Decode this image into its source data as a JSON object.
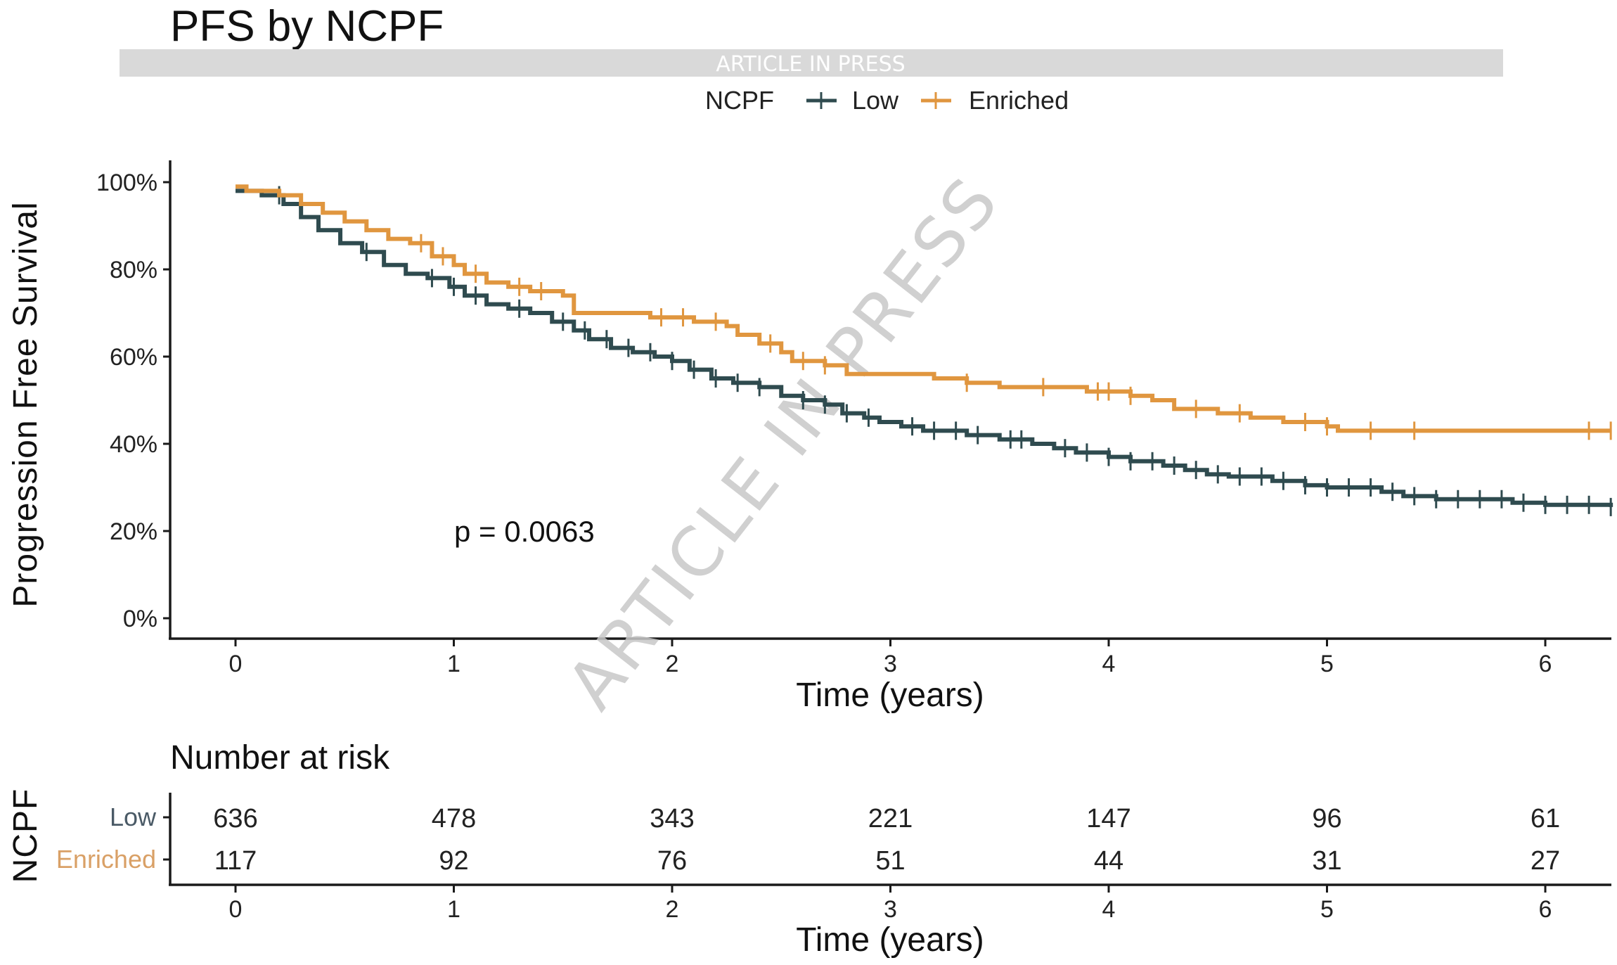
{
  "chart_data": {
    "type": "line",
    "subtype": "kaplan-meier",
    "title": "PFS by NCPF",
    "banner": "ARTICLE IN PRESS",
    "watermark": "ARTICLE IN PRESS",
    "xlabel": "Time (years)",
    "ylabel": "Progression Free Survival",
    "xlim": [
      -0.3,
      6.3
    ],
    "ylim": [
      -5,
      105
    ],
    "x_ticks": [
      0,
      1,
      2,
      3,
      4,
      5,
      6
    ],
    "x_tick_labels": [
      "0",
      "1",
      "2",
      "3",
      "4",
      "5",
      "6"
    ],
    "y_ticks": [
      0,
      20,
      40,
      60,
      80,
      100
    ],
    "y_tick_labels": [
      "0%",
      "20%",
      "40%",
      "60%",
      "80%",
      "100%"
    ],
    "grid": false,
    "legend": {
      "title": "NCPF",
      "placement": "top",
      "entries": [
        {
          "label": "Low",
          "color": "#2f4b4f"
        },
        {
          "label": "Enriched",
          "color": "#e0963f"
        }
      ]
    },
    "annotation": "p = 0.0063",
    "series": [
      {
        "name": "Low",
        "color": "#2f4b4f",
        "steps": [
          [
            0,
            98
          ],
          [
            0.12,
            97
          ],
          [
            0.22,
            95
          ],
          [
            0.3,
            92
          ],
          [
            0.38,
            89
          ],
          [
            0.48,
            86
          ],
          [
            0.58,
            84
          ],
          [
            0.68,
            81
          ],
          [
            0.78,
            79
          ],
          [
            0.88,
            78
          ],
          [
            0.98,
            76
          ],
          [
            1.05,
            74
          ],
          [
            1.15,
            72
          ],
          [
            1.25,
            71
          ],
          [
            1.35,
            70
          ],
          [
            1.45,
            68
          ],
          [
            1.55,
            66
          ],
          [
            1.62,
            64
          ],
          [
            1.72,
            62
          ],
          [
            1.82,
            61
          ],
          [
            1.92,
            60
          ],
          [
            2.0,
            59
          ],
          [
            2.08,
            57
          ],
          [
            2.18,
            55
          ],
          [
            2.28,
            54
          ],
          [
            2.4,
            53
          ],
          [
            2.5,
            51
          ],
          [
            2.6,
            50
          ],
          [
            2.7,
            49
          ],
          [
            2.78,
            47
          ],
          [
            2.88,
            46
          ],
          [
            2.95,
            45
          ],
          [
            3.05,
            44
          ],
          [
            3.15,
            43
          ],
          [
            3.35,
            42
          ],
          [
            3.5,
            41
          ],
          [
            3.65,
            40
          ],
          [
            3.75,
            39
          ],
          [
            3.85,
            38
          ],
          [
            4.0,
            37
          ],
          [
            4.1,
            36
          ],
          [
            4.25,
            35
          ],
          [
            4.35,
            34
          ],
          [
            4.45,
            33
          ],
          [
            4.55,
            32.5
          ],
          [
            4.75,
            31.5
          ],
          [
            4.9,
            30.5
          ],
          [
            5.0,
            30
          ],
          [
            5.25,
            29
          ],
          [
            5.35,
            28
          ],
          [
            5.5,
            27.3
          ],
          [
            5.85,
            26.5
          ],
          [
            6.0,
            26
          ],
          [
            6.3,
            25.5
          ]
        ],
        "censored": [
          0.2,
          0.6,
          0.9,
          1.0,
          1.1,
          1.3,
          1.5,
          1.6,
          1.7,
          1.8,
          1.9,
          2.0,
          2.1,
          2.2,
          2.3,
          2.4,
          2.6,
          2.7,
          2.8,
          2.9,
          3.1,
          3.2,
          3.3,
          3.4,
          3.55,
          3.6,
          3.8,
          3.9,
          4.0,
          4.1,
          4.2,
          4.3,
          4.4,
          4.5,
          4.6,
          4.7,
          4.8,
          4.9,
          5.0,
          5.1,
          5.2,
          5.3,
          5.4,
          5.5,
          5.6,
          5.7,
          5.8,
          5.9,
          6.0,
          6.1,
          6.2,
          6.3
        ]
      },
      {
        "name": "Enriched",
        "color": "#e0963f",
        "steps": [
          [
            0,
            99
          ],
          [
            0.05,
            98
          ],
          [
            0.2,
            97
          ],
          [
            0.3,
            95
          ],
          [
            0.4,
            93
          ],
          [
            0.5,
            91
          ],
          [
            0.6,
            89
          ],
          [
            0.7,
            87
          ],
          [
            0.8,
            86
          ],
          [
            0.9,
            83
          ],
          [
            1.0,
            81
          ],
          [
            1.05,
            79
          ],
          [
            1.15,
            77
          ],
          [
            1.25,
            76
          ],
          [
            1.35,
            75
          ],
          [
            1.5,
            74
          ],
          [
            1.55,
            70
          ],
          [
            1.9,
            69
          ],
          [
            2.1,
            68
          ],
          [
            2.25,
            67
          ],
          [
            2.3,
            65
          ],
          [
            2.4,
            63
          ],
          [
            2.5,
            61
          ],
          [
            2.55,
            59
          ],
          [
            2.7,
            58
          ],
          [
            2.8,
            56
          ],
          [
            3.2,
            55
          ],
          [
            3.35,
            54
          ],
          [
            3.5,
            53
          ],
          [
            3.9,
            52
          ],
          [
            4.1,
            51
          ],
          [
            4.2,
            50
          ],
          [
            4.3,
            48
          ],
          [
            4.5,
            47
          ],
          [
            4.65,
            46
          ],
          [
            4.8,
            45
          ],
          [
            5.0,
            44
          ],
          [
            5.05,
            43
          ],
          [
            6.3,
            43
          ]
        ],
        "censored": [
          0.85,
          0.95,
          1.1,
          1.3,
          1.4,
          1.95,
          2.05,
          2.2,
          2.45,
          2.6,
          2.7,
          3.35,
          3.7,
          3.95,
          4.0,
          4.1,
          4.4,
          4.6,
          4.9,
          5.0,
          5.2,
          5.4,
          6.2,
          6.3
        ]
      }
    ],
    "risk_table": {
      "title": "Number at risk",
      "row_axis_title": "NCPF",
      "xlabel": "Time (years)",
      "times": [
        0,
        1,
        2,
        3,
        4,
        5,
        6
      ],
      "rows": [
        {
          "label": "Low",
          "color": "#2f4b4f",
          "label_color": "#4a5a66",
          "values": [
            636,
            478,
            343,
            221,
            147,
            96,
            61
          ]
        },
        {
          "label": "Enriched",
          "color": "#e0963f",
          "label_color": "#d9a066",
          "values": [
            117,
            92,
            76,
            51,
            44,
            31,
            27
          ]
        }
      ]
    }
  }
}
